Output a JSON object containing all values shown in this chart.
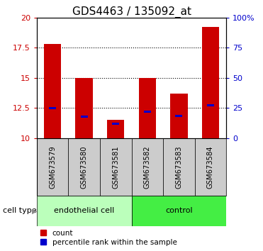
{
  "title": "GDS4463 / 135092_at",
  "samples": [
    "GSM673579",
    "GSM673580",
    "GSM673581",
    "GSM673582",
    "GSM673583",
    "GSM673584"
  ],
  "red_bar_tops": [
    17.8,
    15.0,
    11.5,
    15.0,
    13.7,
    19.2
  ],
  "blue_marker_vals": [
    12.5,
    11.8,
    11.2,
    12.2,
    11.85,
    12.7
  ],
  "bar_base": 10.0,
  "ylim_left": [
    10,
    20
  ],
  "ylim_right": [
    0,
    100
  ],
  "yticks_left": [
    10,
    12.5,
    15,
    17.5,
    20
  ],
  "ytick_labels_left": [
    "10",
    "12.5",
    "15",
    "17.5",
    "20"
  ],
  "yticks_right": [
    0,
    25,
    50,
    75,
    100
  ],
  "ytick_labels_right": [
    "0",
    "25",
    "50",
    "75",
    "100%"
  ],
  "group1_label": "endothelial cell",
  "group2_label": "control",
  "group1_indices": [
    0,
    1,
    2
  ],
  "group2_indices": [
    3,
    4,
    5
  ],
  "cell_type_label": "cell type",
  "legend_count_label": "count",
  "legend_percentile_label": "percentile rank within the sample",
  "red_color": "#cc0000",
  "blue_color": "#0000cc",
  "group1_bg": "#bbffbb",
  "group2_bg": "#44ee44",
  "tick_bg": "#cccccc",
  "dotted_lines_at": [
    12.5,
    15.0,
    17.5
  ],
  "bar_width": 0.55,
  "title_fontsize": 11,
  "tick_fontsize": 8,
  "label_fontsize": 8
}
